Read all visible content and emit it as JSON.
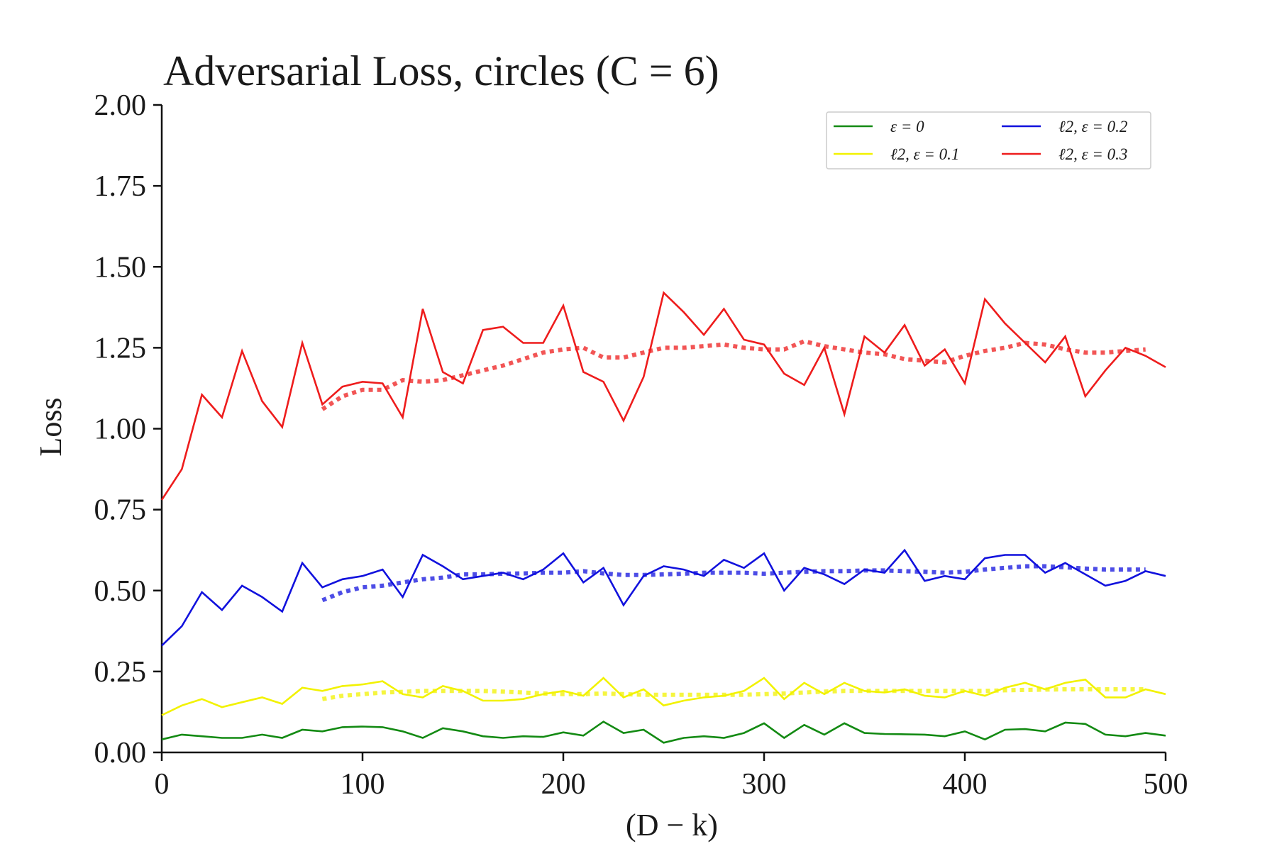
{
  "chart_data": {
    "type": "line",
    "title": "Adversarial Loss, circles (C = 6)",
    "xlabel": "(D − k)",
    "ylabel": "Loss",
    "xlim": [
      0,
      500
    ],
    "ylim": [
      0,
      2
    ],
    "xticks": [
      0,
      100,
      200,
      300,
      400,
      500
    ],
    "xtick_labels": [
      "0",
      "100",
      "200",
      "300",
      "400",
      "500"
    ],
    "yticks": [
      0,
      0.25,
      0.5,
      0.75,
      1.0,
      1.25,
      1.5,
      1.75,
      2.0
    ],
    "ytick_labels": [
      "0.00",
      "0.25",
      "0.50",
      "0.75",
      "1.00",
      "1.25",
      "1.50",
      "1.75",
      "2.00"
    ],
    "grid": false,
    "legend_position": "top-right",
    "legend_columns": 2,
    "x": [
      0,
      10,
      20,
      30,
      40,
      50,
      60,
      70,
      80,
      90,
      100,
      110,
      120,
      130,
      140,
      150,
      160,
      170,
      180,
      190,
      200,
      210,
      220,
      230,
      240,
      250,
      260,
      270,
      280,
      290,
      300,
      310,
      320,
      330,
      340,
      350,
      360,
      370,
      380,
      390,
      400,
      410,
      420,
      430,
      440,
      450,
      460,
      470,
      480,
      490,
      500
    ],
    "series": [
      {
        "name": "ε = 0",
        "color": "#138a13",
        "values": [
          0.04,
          0.055,
          0.05,
          0.045,
          0.045,
          0.055,
          0.045,
          0.07,
          0.065,
          0.078,
          0.08,
          0.078,
          0.065,
          0.045,
          0.075,
          0.065,
          0.05,
          0.045,
          0.05,
          0.048,
          0.062,
          0.052,
          0.095,
          0.06,
          0.07,
          0.03,
          0.045,
          0.05,
          0.045,
          0.06,
          0.09,
          0.045,
          0.085,
          0.055,
          0.09,
          0.06,
          0.057,
          0.056,
          0.055,
          0.05,
          0.065,
          0.04,
          0.07,
          0.072,
          0.065,
          0.092,
          0.088,
          0.055,
          0.05,
          0.06,
          0.052
        ],
        "trend_x": [],
        "trend": []
      },
      {
        "name": "ℓ2, ε = 0.1",
        "color": "#f2f200",
        "values": [
          0.115,
          0.145,
          0.165,
          0.14,
          0.155,
          0.17,
          0.15,
          0.2,
          0.19,
          0.205,
          0.21,
          0.22,
          0.18,
          0.17,
          0.205,
          0.19,
          0.16,
          0.16,
          0.165,
          0.18,
          0.19,
          0.175,
          0.23,
          0.17,
          0.195,
          0.145,
          0.16,
          0.17,
          0.175,
          0.19,
          0.23,
          0.165,
          0.215,
          0.18,
          0.215,
          0.19,
          0.185,
          0.195,
          0.175,
          0.17,
          0.19,
          0.175,
          0.2,
          0.215,
          0.195,
          0.215,
          0.225,
          0.17,
          0.17,
          0.195,
          0.18
        ],
        "trend_x": [
          80,
          90,
          100,
          110,
          120,
          130,
          140,
          150,
          160,
          170,
          180,
          190,
          200,
          210,
          220,
          230,
          240,
          250,
          260,
          270,
          280,
          290,
          300,
          310,
          320,
          330,
          340,
          350,
          360,
          370,
          380,
          390,
          400,
          410,
          420,
          430,
          440,
          450,
          460,
          470,
          480,
          490
        ],
        "trend": [
          0.165,
          0.175,
          0.18,
          0.185,
          0.187,
          0.19,
          0.19,
          0.19,
          0.19,
          0.188,
          0.185,
          0.182,
          0.18,
          0.18,
          0.182,
          0.18,
          0.178,
          0.178,
          0.178,
          0.178,
          0.178,
          0.178,
          0.18,
          0.182,
          0.185,
          0.188,
          0.19,
          0.19,
          0.19,
          0.19,
          0.19,
          0.19,
          0.19,
          0.19,
          0.192,
          0.193,
          0.194,
          0.195,
          0.195,
          0.195,
          0.195,
          0.195
        ]
      },
      {
        "name": "ℓ2, ε = 0.2",
        "color": "#1111dd",
        "values": [
          0.33,
          0.39,
          0.495,
          0.44,
          0.515,
          0.48,
          0.435,
          0.585,
          0.51,
          0.535,
          0.545,
          0.565,
          0.48,
          0.61,
          0.575,
          0.535,
          0.545,
          0.555,
          0.535,
          0.565,
          0.615,
          0.525,
          0.57,
          0.455,
          0.545,
          0.575,
          0.565,
          0.545,
          0.595,
          0.57,
          0.615,
          0.5,
          0.57,
          0.55,
          0.52,
          0.565,
          0.555,
          0.625,
          0.53,
          0.545,
          0.535,
          0.6,
          0.61,
          0.61,
          0.555,
          0.585,
          0.55,
          0.515,
          0.53,
          0.56,
          0.545
        ],
        "trend_x": [
          80,
          90,
          100,
          110,
          120,
          130,
          140,
          150,
          160,
          170,
          180,
          190,
          200,
          210,
          220,
          230,
          240,
          250,
          260,
          270,
          280,
          290,
          300,
          310,
          320,
          330,
          340,
          350,
          360,
          370,
          380,
          390,
          400,
          410,
          420,
          430,
          440,
          450,
          460,
          470,
          480,
          490
        ],
        "trend": [
          0.47,
          0.495,
          0.51,
          0.515,
          0.525,
          0.535,
          0.54,
          0.55,
          0.55,
          0.552,
          0.553,
          0.555,
          0.555,
          0.56,
          0.553,
          0.548,
          0.548,
          0.55,
          0.552,
          0.555,
          0.555,
          0.555,
          0.552,
          0.555,
          0.558,
          0.56,
          0.56,
          0.562,
          0.562,
          0.56,
          0.558,
          0.555,
          0.558,
          0.565,
          0.57,
          0.575,
          0.575,
          0.572,
          0.568,
          0.565,
          0.565,
          0.565
        ]
      },
      {
        "name": "ℓ2, ε = 0.3",
        "color": "#ee1c1c",
        "values": [
          0.78,
          0.875,
          1.105,
          1.035,
          1.24,
          1.085,
          1.005,
          1.265,
          1.075,
          1.13,
          1.145,
          1.14,
          1.035,
          1.37,
          1.175,
          1.14,
          1.305,
          1.315,
          1.265,
          1.265,
          1.38,
          1.175,
          1.145,
          1.025,
          1.16,
          1.42,
          1.36,
          1.29,
          1.37,
          1.275,
          1.26,
          1.17,
          1.135,
          1.25,
          1.045,
          1.285,
          1.235,
          1.32,
          1.195,
          1.245,
          1.14,
          1.4,
          1.325,
          1.265,
          1.205,
          1.285,
          1.1,
          1.18,
          1.25,
          1.225,
          1.19
        ],
        "trend_x": [
          80,
          90,
          100,
          110,
          120,
          130,
          140,
          150,
          160,
          170,
          180,
          190,
          200,
          210,
          220,
          230,
          240,
          250,
          260,
          270,
          280,
          290,
          300,
          310,
          320,
          330,
          340,
          350,
          360,
          370,
          380,
          390,
          400,
          410,
          420,
          430,
          440,
          450,
          460,
          470,
          480,
          490
        ],
        "trend": [
          1.06,
          1.1,
          1.12,
          1.12,
          1.15,
          1.145,
          1.15,
          1.165,
          1.18,
          1.195,
          1.215,
          1.235,
          1.245,
          1.25,
          1.22,
          1.22,
          1.235,
          1.25,
          1.25,
          1.255,
          1.26,
          1.25,
          1.245,
          1.245,
          1.27,
          1.255,
          1.245,
          1.235,
          1.23,
          1.215,
          1.21,
          1.205,
          1.225,
          1.24,
          1.25,
          1.265,
          1.26,
          1.245,
          1.235,
          1.235,
          1.24,
          1.245
        ]
      }
    ]
  }
}
